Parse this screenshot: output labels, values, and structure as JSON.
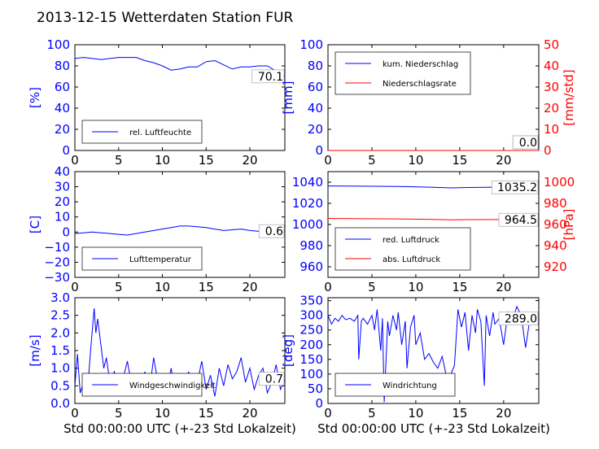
{
  "title": "2013-12-15 Wetterdaten Station FUR",
  "xlabel": "Std 00:00:00 UTC (+-23 Std Lokalzeit)",
  "colors": {
    "primary": "#0000ff",
    "secondary": "#ff0000",
    "axis": "#000000"
  },
  "chart_data": [
    {
      "type": "line",
      "ylabel": "[%]",
      "ylim": [
        0,
        100
      ],
      "yticks": [
        "0",
        "20",
        "40",
        "60",
        "80",
        "100"
      ],
      "xlim": [
        0,
        24
      ],
      "xticks": [
        "0",
        "5",
        "10",
        "15",
        "20"
      ],
      "legend": "bottom-left",
      "annotation": "70.1",
      "series": [
        {
          "name": "rel. Luftfeuchte",
          "color": "#0000ff",
          "x": [
            0,
            1,
            2,
            3,
            4,
            5,
            6,
            7,
            8,
            9,
            10,
            11,
            12,
            13,
            14,
            15,
            16,
            17,
            18,
            19,
            20,
            21,
            22,
            23,
            24
          ],
          "y": [
            87,
            88,
            87,
            86,
            87,
            88,
            88,
            88,
            85,
            83,
            80,
            76,
            77,
            79,
            79,
            84,
            85,
            81,
            77,
            79,
            79,
            80,
            80,
            75,
            70.1
          ]
        }
      ]
    },
    {
      "type": "line",
      "ylabel": "[mm]",
      "ylabel2": "[mm/std]",
      "ylim": [
        0,
        100
      ],
      "y2lim": [
        0,
        50
      ],
      "yticks": [
        "0",
        "20",
        "40",
        "60",
        "80",
        "100"
      ],
      "y2ticks": [
        "0",
        "10",
        "20",
        "30",
        "40",
        "50"
      ],
      "xlim": [
        0,
        24
      ],
      "xticks": [
        "0",
        "5",
        "10",
        "15",
        "20"
      ],
      "legend": "top-left",
      "annotation": "0.0",
      "annotation2": "0.0",
      "series": [
        {
          "name": "kum. Niederschlag",
          "color": "#0000ff",
          "x": [
            0,
            24
          ],
          "y": [
            0,
            0
          ]
        },
        {
          "name": "Niederschlagsrate",
          "color": "#ff0000",
          "axis": "right",
          "x": [
            0,
            24
          ],
          "y": [
            0,
            0
          ]
        }
      ]
    },
    {
      "type": "line",
      "ylabel": "[C]",
      "ylim": [
        -30,
        40
      ],
      "yticks": [
        "−30",
        "−20",
        "−10",
        "0",
        "10",
        "20",
        "30",
        "40"
      ],
      "xlim": [
        0,
        24
      ],
      "xticks": [
        "0",
        "5",
        "10",
        "15",
        "20"
      ],
      "legend": "bottom-left",
      "annotation": "0.6",
      "series": [
        {
          "name": "Lufttemperatur",
          "color": "#0000ff",
          "x": [
            0,
            1,
            2,
            3,
            4,
            5,
            6,
            7,
            8,
            9,
            10,
            11,
            12,
            13,
            14,
            15,
            16,
            17,
            18,
            19,
            20,
            21,
            22,
            23,
            24
          ],
          "y": [
            -1,
            -0.5,
            0,
            -0.5,
            -1,
            -1.5,
            -2,
            -1,
            0,
            1,
            2,
            3,
            4,
            4,
            3.5,
            3,
            2,
            1,
            1.5,
            2,
            1,
            0.5,
            1,
            0.8,
            0.6
          ]
        }
      ]
    },
    {
      "type": "line",
      "ylabel": "",
      "ylabel2": "[hPa]",
      "ylim": [
        950,
        1050
      ],
      "y2lim": [
        910,
        1010
      ],
      "yticks": [
        "960",
        "980",
        "1000",
        "1020",
        "1040"
      ],
      "y2ticks": [
        "920",
        "940",
        "960",
        "980",
        "1000"
      ],
      "xlim": [
        0,
        24
      ],
      "xticks": [
        "0",
        "5",
        "10",
        "15",
        "20"
      ],
      "legend": "bottom-left",
      "annotation": "1035.2",
      "annotation2": "964.5",
      "series": [
        {
          "name": "red. Luftdruck",
          "color": "#0000ff",
          "x": [
            0,
            4,
            8,
            12,
            14,
            16,
            20,
            24
          ],
          "y": [
            1036.5,
            1036.2,
            1036,
            1035.2,
            1034.6,
            1035,
            1035.4,
            1035.2
          ]
        },
        {
          "name": "abs. Luftdruck",
          "color": "#ff0000",
          "axis": "right",
          "x": [
            0,
            4,
            8,
            12,
            14,
            16,
            20,
            24
          ],
          "y": [
            965.8,
            965.5,
            965.3,
            964.8,
            964.4,
            964.6,
            964.7,
            964.5
          ]
        }
      ]
    },
    {
      "type": "line",
      "ylabel": "[m/s]",
      "ylim": [
        0,
        3
      ],
      "yticks": [
        "0.0",
        "0.5",
        "1.0",
        "1.5",
        "2.0",
        "2.5",
        "3.0"
      ],
      "xlim": [
        0,
        24
      ],
      "xticks": [
        "0",
        "5",
        "10",
        "15",
        "20"
      ],
      "legend": "bottom-left",
      "annotation": "0.7",
      "series": [
        {
          "name": "Windgeschwindigkeit",
          "color": "#0000ff",
          "x": [
            0,
            0.3,
            0.6,
            1,
            1.4,
            1.8,
            2.2,
            2.4,
            2.6,
            3,
            3.3,
            3.6,
            4,
            4.5,
            5,
            5.5,
            6,
            6.5,
            7,
            7.5,
            8,
            8.5,
            9,
            9.5,
            10,
            10.5,
            11,
            11.5,
            12,
            12.5,
            13,
            13.5,
            14,
            14.5,
            15,
            15.5,
            16,
            16.5,
            17,
            17.5,
            18,
            18.5,
            19,
            19.5,
            20,
            20.5,
            21,
            21.5,
            22,
            22.5,
            23,
            23.5,
            24
          ],
          "y": [
            0.5,
            1.4,
            0.3,
            0.6,
            0.2,
            1.5,
            2.7,
            2.0,
            2.4,
            1.6,
            1.0,
            1.3,
            0.6,
            0.9,
            0.4,
            0.7,
            1.2,
            0.5,
            0.8,
            0.4,
            0.9,
            0.3,
            1.3,
            0.6,
            0.8,
            0.4,
            1.0,
            0.3,
            0.7,
            0.5,
            0.9,
            0.3,
            0.6,
            1.2,
            0.4,
            0.8,
            0.2,
            1.0,
            0.5,
            1.1,
            0.7,
            0.9,
            1.3,
            0.6,
            1.0,
            0.4,
            0.8,
            1.0,
            0.3,
            0.6,
            1.1,
            0.4,
            0.7
          ]
        }
      ]
    },
    {
      "type": "line",
      "ylabel": "[deg]",
      "ylim": [
        0,
        360
      ],
      "yticks": [
        "0",
        "50",
        "100",
        "150",
        "200",
        "250",
        "300",
        "350"
      ],
      "xlim": [
        0,
        24
      ],
      "xticks": [
        "0",
        "5",
        "10",
        "15",
        "20"
      ],
      "legend": "bottom-left",
      "annotation": "289.0",
      "series": [
        {
          "name": "Windrichtung",
          "color": "#0000ff",
          "x": [
            0,
            0.4,
            0.8,
            1.2,
            1.6,
            2,
            2.5,
            3,
            3.4,
            3.5,
            3.8,
            4,
            4.5,
            5,
            5.3,
            5.6,
            6,
            6.2,
            6.4,
            6.8,
            7,
            7.4,
            7.8,
            8,
            8.4,
            8.8,
            9,
            9.4,
            9.8,
            10,
            10.5,
            11,
            11.5,
            12,
            12.5,
            13,
            13.5,
            14,
            14.4,
            14.8,
            15.2,
            15.6,
            16,
            16.4,
            16.8,
            17,
            17.4,
            17.8,
            18,
            18.4,
            18.8,
            19,
            19.5,
            20,
            20.5,
            21,
            21.5,
            22,
            22.5,
            23,
            23.5,
            24
          ],
          "y": [
            300,
            270,
            290,
            280,
            300,
            285,
            290,
            280,
            300,
            150,
            280,
            290,
            270,
            300,
            250,
            320,
            180,
            290,
            5,
            280,
            230,
            300,
            250,
            310,
            200,
            280,
            120,
            260,
            300,
            200,
            240,
            150,
            170,
            140,
            120,
            160,
            90,
            100,
            130,
            320,
            260,
            310,
            180,
            300,
            240,
            320,
            280,
            60,
            300,
            230,
            310,
            270,
            290,
            200,
            310,
            280,
            330,
            300,
            190,
            290,
            300,
            289
          ]
        }
      ]
    }
  ]
}
